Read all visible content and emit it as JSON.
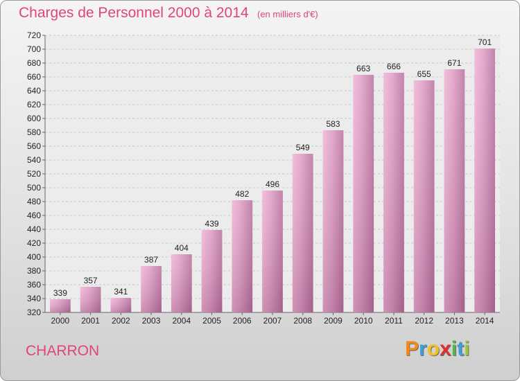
{
  "chart_data": {
    "type": "bar",
    "title": "Charges de Personnel 2000 à 2014",
    "subtitle": "(en milliers d'€)",
    "categories": [
      "2000",
      "2001",
      "2002",
      "2003",
      "2004",
      "2005",
      "2006",
      "2007",
      "2008",
      "2009",
      "2010",
      "2011",
      "2012",
      "2013",
      "2014"
    ],
    "values": [
      339,
      357,
      341,
      387,
      404,
      439,
      482,
      496,
      549,
      583,
      663,
      666,
      655,
      671,
      701
    ],
    "ylim": [
      320,
      720
    ],
    "ytick_step": 20,
    "grid": true,
    "bar_color": "#d68ab4",
    "xlabel": "",
    "ylabel": ""
  },
  "commune": "CHARRON",
  "logo": {
    "letters": [
      "P",
      "r",
      "o",
      "x",
      "i",
      "t",
      "i"
    ],
    "colors": [
      "#f08a1c",
      "#3aa0d8",
      "#f0c020",
      "#e03030",
      "#4fb84a",
      "#3aa0d8",
      "#9fc63a"
    ]
  }
}
